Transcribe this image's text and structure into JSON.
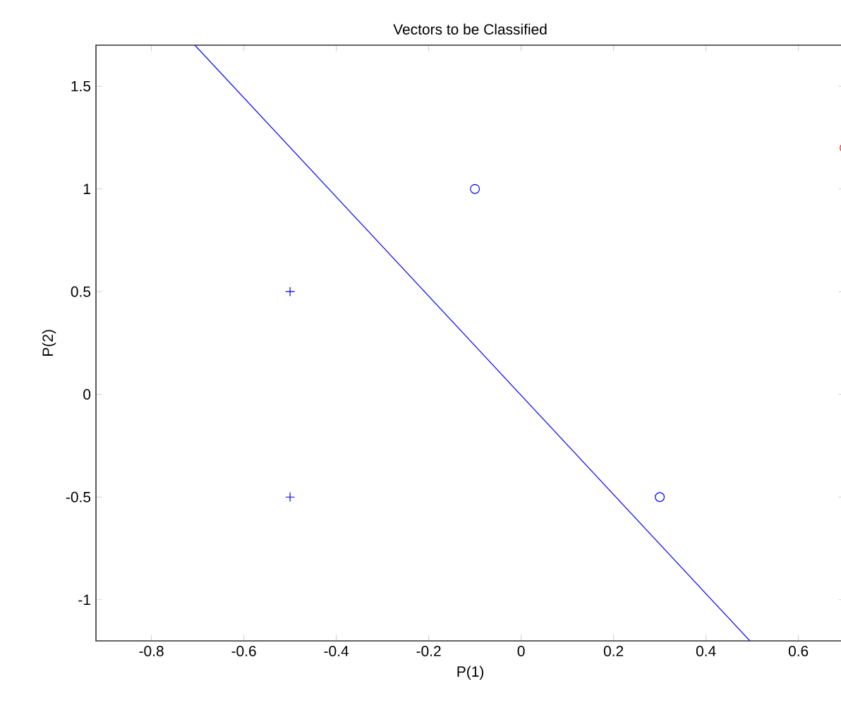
{
  "chart_data": {
    "type": "scatter",
    "title": "Vectors to be Classified",
    "xlabel": "P(1)",
    "ylabel": "P(2)",
    "xlim": [
      -0.92,
      0.7
    ],
    "ylim": [
      -1.2,
      1.7
    ],
    "xticks": [
      -0.8,
      -0.6,
      -0.4,
      -0.2,
      0,
      0.2,
      0.4,
      0.6
    ],
    "yticks": [
      -1,
      -0.5,
      0,
      0.5,
      1,
      1.5
    ],
    "grid": false,
    "series": [
      {
        "marker": "cross",
        "color": "#0000ff",
        "x": [
          -0.5,
          -0.5
        ],
        "values": [
          0.5,
          -0.5
        ]
      },
      {
        "marker": "circle",
        "color": "#0000ff",
        "x": [
          -0.1,
          0.3
        ],
        "values": [
          1,
          -0.5
        ]
      },
      {
        "marker": "circle",
        "color": "#ff0000",
        "x": [
          0.7
        ],
        "values": [
          1.2
        ]
      },
      {
        "type": "line",
        "marker": "none",
        "color": "#0000ff",
        "x": [
          -0.706,
          0.495
        ],
        "values": [
          1.7,
          -1.2
        ]
      }
    ]
  }
}
